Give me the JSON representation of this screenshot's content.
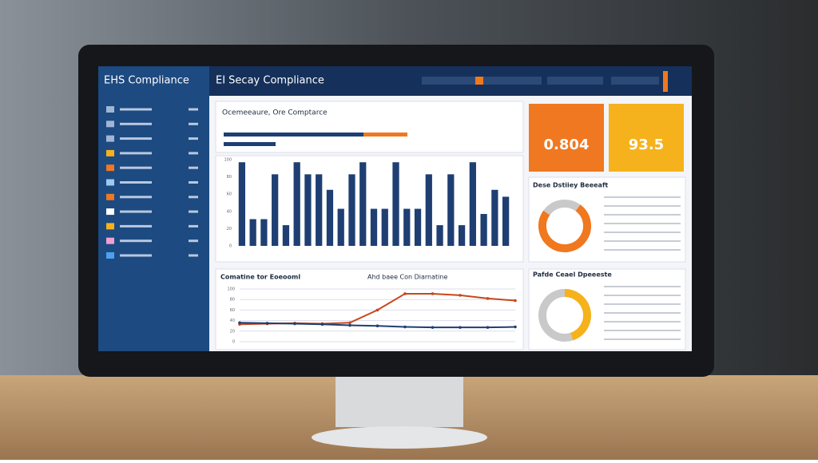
{
  "app": {
    "brand": "EHS Compliance",
    "header_title": "EI Secay Compliance",
    "panel_title": "Ocemeeaure, Ore Comptarce",
    "kpis": [
      {
        "value": "0.804",
        "color": "#f07820"
      },
      {
        "value": "93.5",
        "color": "#f5b21c"
      }
    ]
  },
  "chart_data": [
    {
      "type": "bar",
      "color": "#1f3f73",
      "categories": [
        null,
        null,
        null,
        null,
        null,
        null,
        null,
        null,
        null,
        null,
        null,
        null,
        null,
        null,
        null,
        null,
        null,
        null,
        null,
        null,
        null,
        null,
        null,
        null,
        null
      ],
      "values": [
        97,
        31,
        31,
        83,
        24,
        97,
        83,
        83,
        65,
        43,
        83,
        97,
        43,
        43,
        97,
        43,
        43,
        83,
        24,
        83,
        24,
        97,
        37,
        65,
        57
      ],
      "ylim": [
        0,
        100
      ],
      "yticks": [
        0,
        20,
        40,
        60,
        80,
        100
      ],
      "grid": false
    },
    {
      "type": "line",
      "title": "Comatine tor Eoeooml",
      "subtitle": "Ahd baee Con Diarnatine",
      "x": [
        1,
        2,
        3,
        4,
        5,
        6,
        7,
        8,
        9,
        10,
        11
      ],
      "xlim": [
        1,
        11
      ],
      "ylim": [
        0,
        100
      ],
      "yticks": [
        0,
        20,
        40,
        60,
        80,
        100
      ],
      "grid": true,
      "series": [
        {
          "color": "#c8461c",
          "values": [
            33,
            34,
            35,
            34,
            36,
            60,
            91,
            91,
            88,
            82,
            78
          ]
        },
        {
          "color": "#1f3f73",
          "values": [
            36,
            35,
            34,
            33,
            31,
            30,
            28,
            27,
            27,
            27,
            28
          ]
        }
      ]
    },
    {
      "type": "pie",
      "title": "Dese Dstiiey Beeeaft",
      "categories": [
        null,
        null
      ],
      "values": [
        75,
        25
      ],
      "colors": [
        "#f07820",
        "#c9c9c9"
      ]
    },
    {
      "type": "pie",
      "title": "Pafde Ceael Dpeeeste",
      "categories": [
        null,
        null
      ],
      "values": [
        45,
        55
      ],
      "colors": [
        "#f5b21c",
        "#c9c9c9"
      ]
    }
  ]
}
